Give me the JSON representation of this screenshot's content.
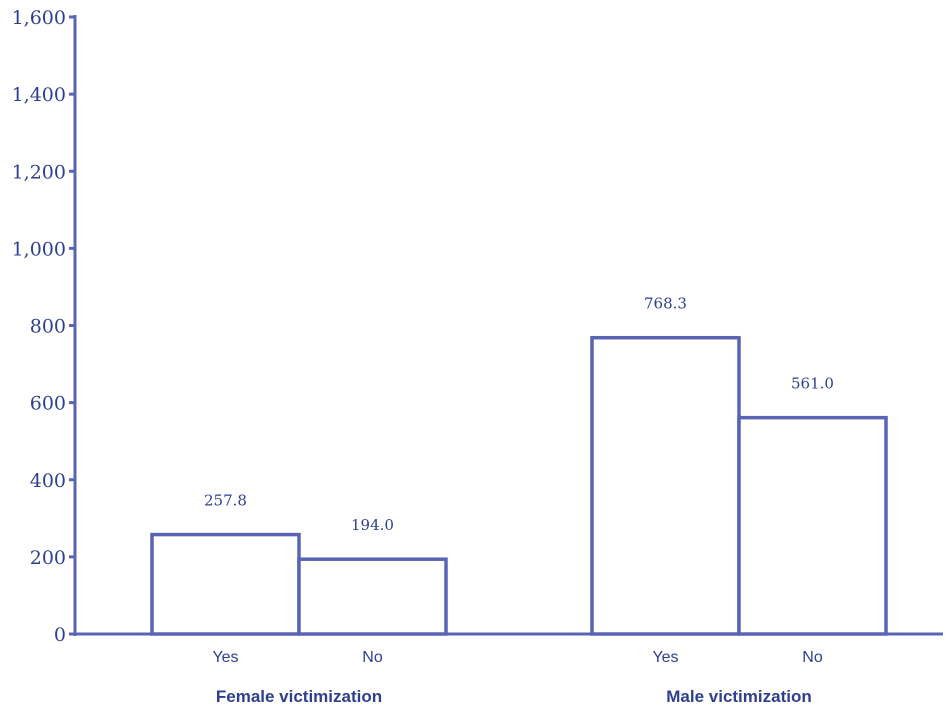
{
  "chart_data": {
    "type": "bar",
    "groups": [
      "Female victimization",
      "Male victimization"
    ],
    "categories": [
      "Yes",
      "No"
    ],
    "series": [
      {
        "values": [
          257.8,
          194.0
        ]
      },
      {
        "values": [
          768.3,
          561.0
        ]
      }
    ],
    "data_labels": [
      [
        "257.8",
        "194.0"
      ],
      [
        "768.3",
        "561.0"
      ]
    ],
    "yticks": [
      0,
      200,
      400,
      600,
      800,
      1000,
      1200,
      1400,
      1600
    ],
    "ytick_labels": [
      "0",
      "200",
      "400",
      "600",
      "800",
      "1,000",
      "1,200",
      "1,400",
      "1,600"
    ],
    "ylim": [
      0,
      1600
    ],
    "grid": false,
    "legend": "none",
    "colors": {
      "axis": "#5a64b4",
      "bar_edge": "#5a64b4",
      "bar_fill": "#ffffff",
      "text": "#2e3f8f"
    }
  }
}
